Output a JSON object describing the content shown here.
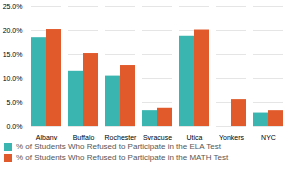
{
  "chart_data": {
    "type": "bar",
    "categories": [
      "Albany",
      "Buffalo",
      "Rochester",
      "Syracuse",
      "Utica",
      "Yonkers",
      "NYC"
    ],
    "series": [
      {
        "name": "% of Students Who Refused to Participate in the ELA Test",
        "color": "#3ab5b0",
        "values": [
          18.5,
          11.5,
          10.5,
          3.3,
          18.8,
          0.0,
          2.8
        ]
      },
      {
        "name": "% of Students Who Refused to Participate in the MATH Test",
        "color": "#e05a2b",
        "values": [
          20.2,
          15.2,
          12.7,
          3.8,
          20.1,
          5.6,
          3.3
        ]
      }
    ],
    "ylim": [
      0,
      25.0
    ],
    "yticks": [
      {
        "value": 0.0,
        "label": "0.0%"
      },
      {
        "value": 5.0,
        "label": "5.0%"
      },
      {
        "value": 10.0,
        "label": "10.0%"
      },
      {
        "value": 15.0,
        "label": "15.0%"
      },
      {
        "value": 20.0,
        "label": "20.0%"
      },
      {
        "value": 25.0,
        "label": "25.0%"
      }
    ],
    "grid": true,
    "legend": "lower left"
  }
}
